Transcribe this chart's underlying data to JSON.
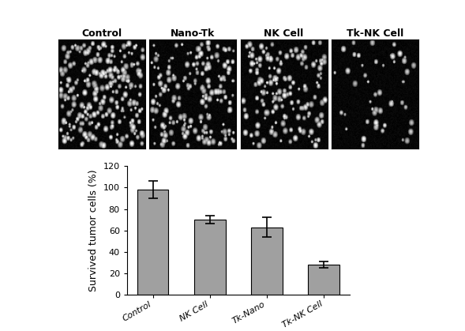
{
  "panel_labels": [
    "Control",
    "Nano-Tk",
    "NK Cell",
    "Tk-NK Cell"
  ],
  "bar_categories": [
    "Control",
    "NK Cell",
    "Tk-Nano",
    "Tk-NK Cell"
  ],
  "bar_values": [
    98,
    70,
    63,
    28
  ],
  "bar_errors": [
    8,
    4,
    9,
    3
  ],
  "bar_color": "#a0a0a0",
  "bar_edge_color": "black",
  "ylabel": "Survived tumor cells (%)",
  "ylim": [
    0,
    120
  ],
  "yticks": [
    0,
    20,
    40,
    60,
    80,
    100,
    120
  ],
  "background_color": "white",
  "image_bg": "black",
  "bar_width": 0.55,
  "label_fontsize": 9,
  "tick_fontsize": 8,
  "ylabel_fontsize": 9
}
